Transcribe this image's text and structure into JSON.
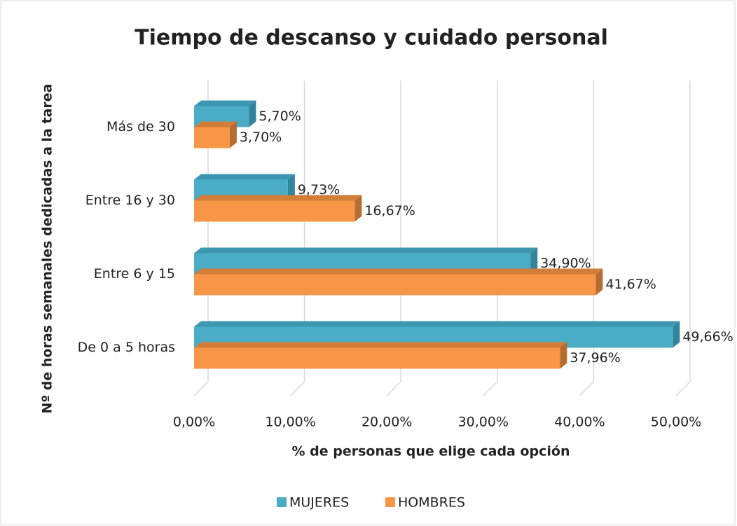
{
  "chart_data": {
    "type": "bar3d_horizontal",
    "title": "Tiempo de descanso y cuidado personal",
    "x_label": "% de personas que elige cada opción",
    "y_label": "Nº de horas semanales dedicadas a la tarea",
    "categories": [
      "Más de 30",
      "Entre 16 y 30",
      "Entre 6 y 15",
      "De 0 a 5 horas"
    ],
    "series": [
      {
        "name": "MUJERES",
        "color": "#4bacc6",
        "side_color": "#31849b",
        "top_color": "#3d97b0",
        "values": [
          5.7,
          9.73,
          34.9,
          49.66
        ],
        "value_labels": [
          "5,70%",
          "9,73%",
          "34,90%",
          "49,66%"
        ]
      },
      {
        "name": "HOMBRES",
        "color": "#f79646",
        "side_color": "#b66d31",
        "top_color": "#d27d38",
        "values": [
          3.7,
          16.67,
          41.67,
          37.96
        ],
        "value_labels": [
          "3,70%",
          "16,67%",
          "41,67%",
          "37,96%"
        ]
      }
    ],
    "xlim": [
      0,
      50
    ],
    "xticks": [
      {
        "value": 0,
        "label": "0,00%"
      },
      {
        "value": 10,
        "label": "10,00%"
      },
      {
        "value": 20,
        "label": "20,00%"
      },
      {
        "value": 30,
        "label": "30,00%"
      },
      {
        "value": 40,
        "label": "40,00%"
      },
      {
        "value": 50,
        "label": "50,00%"
      }
    ],
    "grid": true,
    "legend": "bottom"
  }
}
